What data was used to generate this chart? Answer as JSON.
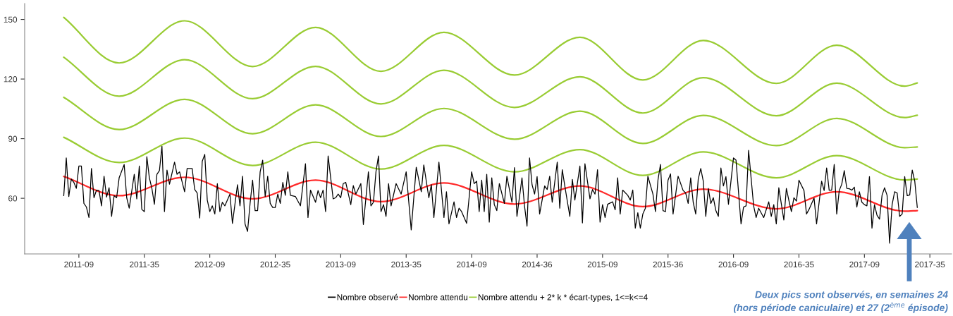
{
  "chart_data": {
    "type": "line",
    "categories": [
      null,
      null,
      null,
      null,
      null,
      null,
      "2011-09",
      null,
      null,
      null,
      null,
      null,
      null,
      null,
      null,
      null,
      null,
      null,
      null,
      null,
      null,
      null,
      null,
      null,
      null,
      null,
      null,
      null,
      null,
      null,
      null,
      null,
      "2011-35",
      null,
      null,
      null,
      null,
      null,
      null,
      null,
      null,
      null,
      null,
      null,
      null,
      null,
      null,
      null,
      null,
      null,
      null,
      null,
      null,
      null,
      null,
      null,
      null,
      null,
      "2012-09",
      null,
      null,
      null,
      null,
      null,
      null,
      null,
      null,
      null,
      null,
      null,
      null,
      null,
      null,
      null,
      null,
      null,
      null,
      null,
      null,
      null,
      null,
      null,
      null,
      null,
      "2012-35",
      null,
      null,
      null,
      null,
      null,
      null,
      null,
      null,
      null,
      null,
      null,
      null,
      null,
      null,
      null,
      null,
      null,
      null,
      null,
      null,
      null,
      null,
      null,
      null,
      null,
      "2013-09",
      null,
      null,
      null,
      null,
      null,
      null,
      null,
      null,
      null,
      null,
      null,
      null,
      null,
      null,
      null,
      null,
      null,
      null,
      null,
      null,
      null,
      null,
      null,
      null,
      null,
      "2013-35",
      null,
      null,
      null,
      null,
      null,
      null,
      null,
      null,
      null,
      null,
      null,
      null,
      null,
      null,
      null,
      null,
      null,
      null,
      null,
      null,
      null,
      null,
      null,
      null,
      null,
      "2014-09",
      null,
      null,
      null,
      null,
      null,
      null,
      null,
      null,
      null,
      null,
      null,
      null,
      null,
      null,
      null,
      null,
      null,
      null,
      null,
      null,
      null,
      null,
      null,
      null,
      null,
      "2014-36",
      null,
      null,
      null,
      null,
      null,
      null,
      null,
      null,
      null,
      null,
      null,
      null,
      null,
      null,
      null,
      null,
      null,
      null,
      null,
      null,
      null,
      null,
      null,
      null,
      null,
      "2015-09",
      null,
      null,
      null,
      null,
      null,
      null,
      null,
      null,
      null,
      null,
      null,
      null,
      null,
      null,
      null,
      null,
      null,
      null,
      null,
      null,
      null,
      null,
      null,
      null,
      null,
      "2015-36",
      null,
      null,
      null,
      null,
      null,
      null,
      null,
      null,
      null,
      null,
      null,
      null,
      null,
      null,
      null,
      null,
      null,
      null,
      null,
      null,
      null,
      null,
      null,
      null,
      null,
      "2016-09",
      null,
      null,
      null,
      null,
      null,
      null,
      null,
      null,
      null,
      null,
      null,
      null,
      null,
      null,
      null,
      null,
      null,
      null,
      null,
      null,
      null,
      null,
      null,
      null,
      null,
      "2016-35",
      null,
      null,
      null,
      null,
      null,
      null,
      null,
      null,
      null,
      null,
      null,
      null,
      null,
      null,
      null,
      null,
      null,
      null,
      null,
      null,
      null,
      null,
      null,
      null,
      null,
      "2017-09",
      null,
      null,
      null,
      null,
      null,
      null,
      null,
      null,
      null,
      null,
      null,
      null,
      null,
      null,
      null,
      null,
      null,
      null,
      null,
      null,
      null,
      null,
      null,
      null,
      null,
      "2017-35"
    ],
    "ylim": [
      32,
      158
    ],
    "yticks": [
      60,
      90,
      120,
      150
    ],
    "legend": "bottom",
    "series": [
      {
        "name": "Nombre observé",
        "color": "#000000",
        "values": [
          61.3,
          80.3,
          60.9,
          69.7,
          68.0,
          65.0,
          76.2,
          76.2,
          57.4,
          55.6,
          50.3,
          75.0,
          60.3,
          64.1,
          63.9,
          56.2,
          71.1,
          60.6,
          65.3,
          50.9,
          61.3,
          60.3,
          70.3,
          null,
          77.0,
          60.3,
          55.0,
          null,
          72.1,
          59.7,
          76.2,
          54.4,
          53.3,
          80.9,
          70.3,
          65.0,
          57.0,
          72.1,
          73.9,
          86.2,
          53.3,
          74.2,
          67.1,
          null,
          78.2,
          72.1,
          73.3,
          null,
          63.3,
          75.0,
          null,
          75.0,
          64.4,
          62.7,
          50.1,
          78.6,
          82.1,
          59.1,
          53.3,
          56.2,
          52.1,
          67.4,
          53.3,
          58.0,
          56.2,
          null,
          62.1,
          47.4,
          null,
          66.8,
          56.2,
          71.1,
          47.1,
          43.3,
          57.4,
          69.1,
          53.8,
          53.8,
          73.3,
          79.2,
          60.9,
          71.1,
          57.4,
          55.4,
          55.4,
          62.1,
          57.4,
          68.0,
          61.5,
          73.3,
          61.5,
          null,
          60.9,
          null,
          56.2,
          null,
          77.4,
          50.3,
          64.1,
          null,
          58.0,
          63.9,
          60.3,
          64.1,
          53.3,
          81.3,
          null,
          59.7,
          60.3,
          62.1,
          60.3,
          67.4,
          68.0,
          null,
          56.8,
          66.4,
          62.1,
          null,
          67.4,
          46.8,
          null,
          73.3,
          56.2,
          58.0,
          73.3,
          81.3,
          53.3,
          56.8,
          50.9,
          67.4,
          56.2,
          null,
          67.4,
          null,
          62.1,
          null,
          73.3,
          null,
          44.1,
          null,
          75.6,
          null,
          63.3,
          76.8,
          null,
          60.3,
          66.8,
          50.3,
          null,
          78.2,
          null,
          50.3,
          63.3,
          47.1,
          null,
          58.2,
          50.3,
          55.0,
          53.3,
          null,
          47.4,
          null,
          73.3,
          67.4,
          68.6,
          53.3,
          69.1,
          53.3,
          72.1,
          48.0,
          70.3,
          56.8,
          53.8,
          67.4,
          null,
          57.4,
          71.1,
          null,
          58.0,
          75.4,
          50.9,
          null,
          70.3,
          56.2,
          46.0,
          80.3,
          66.8,
          62.1,
          70.9,
          52.1,
          null,
          66.2,
          64.4,
          71.1,
          58.0,
          68.0,
          78.2,
          55.0,
          74.4,
          66.2,
          null,
          50.9,
          69.5,
          59.1,
          null,
          76.2,
          47.6,
          77.4,
          null,
          59.7,
          64.4,
          62.1,
          74.4,
          48.0,
          56.8,
          50.3,
          57.0,
          null,
          58.2,
          54.2,
          70.3,
          52.1,
          64.1,
          null,
          61.5,
          59.1,
          64.2,
          45.0,
          52.7,
          45.0,
          52.1,
          55.0,
          71.1,
          null,
          62.1,
          53.3,
          69.1,
          77.0,
          53.8,
          53.3,
          69.1,
          72.3,
          52.1,
          null,
          71.1,
          null,
          63.9,
          62.7,
          57.4,
          70.3,
          58.0,
          52.1,
          69.7,
          75.0,
          68.6,
          50.9,
          65.0,
          57.4,
          60.3,
          53.8,
          50.9,
          75.3,
          66.2,
          70.9,
          57.0,
          null,
          80.3,
          79.2,
          null,
          47.1,
          55.6,
          56.2,
          84.1,
          null,
          56.2,
          50.3,
          55.0,
          null,
          50.3,
          null,
          58.2,
          50.9,
          56.8,
          47.1,
          65.3,
          null,
          49.1,
          65.0,
          58.9,
          53.3,
          60.3,
          58.6,
          69.1,
          null,
          63.9,
          52.1,
          54.4,
          null,
          60.1,
          47.1,
          null,
          68.6,
          63.9,
          75.3,
          64.1,
          64.1,
          77.0,
          52.1,
          63.9,
          67.1,
          73.9,
          65.0,
          64.8,
          64.1,
          65.6,
          55.6,
          63.3,
          58.0,
          56.8,
          56.2,
          70.9,
          45.0,
          56.8,
          51.5,
          49.5,
          61.5,
          65.3,
          61.5,
          37.4,
          56.8,
          63.3,
          62.7,
          50.9,
          52.1,
          70.9,
          61.3,
          61.7,
          74.2,
          68.6,
          55.4,
          null,
          null,
          null,
          null,
          null
        ]
      },
      {
        "name": "Nombre attendu",
        "color": "#ff2a2a",
        "values": [
          71.0,
          null,
          null,
          null,
          null,
          null,
          null,
          null,
          null,
          null,
          null,
          null,
          null,
          null,
          null,
          null,
          null,
          null,
          null,
          null,
          null,
          null,
          61.3,
          null,
          null,
          null,
          null,
          null,
          null,
          null,
          null,
          null,
          null,
          null,
          null,
          null,
          null,
          null,
          null,
          null,
          null,
          null,
          null,
          null,
          null,
          null,
          null,
          null,
          70.6,
          null,
          null,
          null,
          null,
          null,
          null,
          null,
          null,
          null,
          null,
          null,
          null,
          null,
          null,
          null,
          null,
          null,
          null,
          null,
          null,
          null,
          null,
          null,
          null,
          null,
          null,
          59.7,
          null,
          null,
          null,
          null,
          null,
          null,
          null,
          null,
          null,
          null,
          null,
          null,
          null,
          null,
          null,
          null,
          null,
          null,
          null,
          null,
          null,
          null,
          null,
          null,
          69.1,
          null,
          null,
          null,
          null,
          null,
          null,
          null,
          null,
          null,
          null,
          null,
          null,
          null,
          null,
          null,
          null,
          null,
          null,
          null,
          null,
          null,
          null,
          null,
          null,
          null,
          58.3,
          null,
          null,
          null,
          null,
          null,
          null,
          null,
          null,
          null,
          null,
          null,
          null,
          null,
          null,
          null,
          null,
          null,
          null,
          null,
          null,
          null,
          null,
          null,
          null,
          67.7,
          null,
          null,
          null,
          null,
          null,
          null,
          null,
          null,
          null,
          null,
          null,
          null,
          null,
          null,
          null,
          null,
          null,
          null,
          null,
          null,
          null,
          null,
          null,
          null,
          null,
          null,
          null,
          57.1,
          null,
          null,
          null,
          null,
          null,
          null,
          null,
          null,
          null,
          null,
          null,
          null,
          null,
          null,
          null,
          null,
          null,
          null,
          null,
          null,
          null,
          null,
          null,
          null,
          null,
          66.2,
          null,
          null,
          null,
          null,
          null,
          null,
          null,
          null,
          null,
          null,
          null,
          null,
          null,
          null,
          null,
          null,
          null,
          null,
          null,
          null,
          null,
          null,
          null,
          null,
          55.8,
          null,
          null,
          null,
          null,
          null,
          null,
          null,
          null,
          null,
          null,
          null,
          null,
          null,
          null,
          null,
          null,
          null,
          null,
          null,
          null,
          null,
          null,
          null,
          64.6,
          null,
          null,
          null,
          null,
          null,
          null,
          null,
          null,
          null,
          null,
          null,
          null,
          null,
          null,
          null,
          null,
          null,
          null,
          null,
          null,
          null,
          null,
          null,
          null,
          null,
          null,
          null,
          null,
          54.7,
          null,
          null,
          null,
          null,
          null,
          null,
          null,
          null,
          null,
          null,
          null,
          null,
          null,
          null,
          null,
          null,
          null,
          null,
          null,
          null,
          null,
          null,
          null,
          63.3,
          null,
          null,
          null,
          null,
          null,
          null,
          null,
          null,
          null,
          null,
          null,
          null,
          null,
          null,
          null,
          null,
          null,
          null,
          null,
          null,
          null,
          null,
          null,
          null,
          null,
          null,
          53.5,
          null,
          null,
          null,
          null,
          53.8,
          null,
          null,
          null,
          null,
          null
        ]
      },
      {
        "name": "Nombre attendu + 2* k * écart-types, 1<=k<=4",
        "color": "#99cc33",
        "values": [
          90.7,
          null,
          null,
          null,
          null,
          null,
          null,
          null,
          null,
          null,
          null,
          null,
          null,
          null,
          null,
          null,
          null,
          null,
          null,
          null,
          null,
          null,
          78.0,
          null,
          null,
          null,
          null,
          null,
          null,
          null,
          null,
          null,
          null,
          null,
          null,
          null,
          null,
          null,
          null,
          null,
          null,
          null,
          null,
          null,
          null,
          null,
          null,
          null,
          90.3,
          null,
          null,
          null,
          null,
          null,
          null,
          null,
          null,
          null,
          null,
          null,
          null,
          null,
          null,
          null,
          null,
          null,
          null,
          null,
          null,
          null,
          null,
          null,
          null,
          null,
          null,
          76.5,
          null,
          null,
          null,
          null,
          null,
          null,
          null,
          null,
          null,
          null,
          null,
          null,
          null,
          null,
          null,
          null,
          null,
          null,
          null,
          null,
          null,
          null,
          null,
          null,
          88.2,
          null,
          null,
          null,
          null,
          null,
          null,
          null,
          null,
          null,
          null,
          null,
          null,
          null,
          null,
          null,
          null,
          null,
          null,
          null,
          null,
          null,
          null,
          null,
          null,
          null,
          74.7,
          null,
          null,
          null,
          null,
          null,
          null,
          null,
          null,
          null,
          null,
          null,
          null,
          null,
          null,
          null,
          null,
          null,
          null,
          null,
          null,
          null,
          null,
          null,
          null,
          86.6,
          null,
          null,
          null,
          null,
          null,
          null,
          null,
          null,
          null,
          null,
          null,
          null,
          null,
          null,
          null,
          null,
          null,
          null,
          null,
          null,
          null,
          null,
          null,
          null,
          null,
          null,
          null,
          73.3,
          null,
          null,
          null,
          null,
          null,
          null,
          null,
          null,
          null,
          null,
          null,
          null,
          null,
          null,
          null,
          null,
          null,
          null,
          null,
          null,
          null,
          null,
          null,
          null,
          null,
          84.5,
          null,
          null,
          null,
          null,
          null,
          null,
          null,
          null,
          null,
          null,
          null,
          null,
          null,
          null,
          null,
          null,
          null,
          null,
          null,
          null,
          null,
          null,
          null,
          null,
          71.5,
          null,
          null,
          null,
          null,
          null,
          null,
          null,
          null,
          null,
          null,
          null,
          null,
          null,
          null,
          null,
          null,
          null,
          null,
          null,
          null,
          null,
          null,
          null,
          83.3,
          null,
          null,
          null,
          null,
          null,
          null,
          null,
          null,
          null,
          null,
          null,
          null,
          null,
          null,
          null,
          null,
          null,
          null,
          null,
          null,
          null,
          null,
          null,
          null,
          null,
          null,
          null,
          null,
          70.3,
          null,
          null,
          null,
          null,
          null,
          null,
          null,
          null,
          null,
          null,
          null,
          null,
          null,
          null,
          null,
          null,
          null,
          null,
          null,
          null,
          null,
          null,
          null,
          81.5,
          null,
          null,
          null,
          null,
          null,
          null,
          null,
          null,
          null,
          null,
          null,
          null,
          null,
          null,
          null,
          null,
          null,
          null,
          null,
          null,
          null,
          null,
          null,
          null,
          null,
          null,
          69.2,
          null,
          null,
          null,
          null,
          69.7,
          null,
          null,
          null,
          null,
          null
        ]
      },
      {
        "color": "#99cc33",
        "values": [
          110.8,
          null,
          null,
          null,
          null,
          null,
          null,
          null,
          null,
          null,
          null,
          null,
          null,
          null,
          null,
          null,
          null,
          null,
          null,
          null,
          null,
          null,
          94.6,
          null,
          null,
          null,
          null,
          null,
          null,
          null,
          null,
          null,
          null,
          null,
          null,
          null,
          null,
          null,
          null,
          null,
          null,
          null,
          null,
          null,
          null,
          null,
          null,
          null,
          109.8,
          null,
          null,
          null,
          null,
          null,
          null,
          null,
          null,
          null,
          null,
          null,
          null,
          null,
          null,
          null,
          null,
          null,
          null,
          null,
          null,
          null,
          null,
          null,
          null,
          null,
          null,
          92.5,
          null,
          null,
          null,
          null,
          null,
          null,
          null,
          null,
          null,
          null,
          null,
          null,
          null,
          null,
          null,
          null,
          null,
          null,
          null,
          null,
          null,
          null,
          null,
          null,
          107.0,
          null,
          null,
          null,
          null,
          null,
          null,
          null,
          null,
          null,
          null,
          null,
          null,
          null,
          null,
          null,
          null,
          null,
          null,
          null,
          null,
          null,
          null,
          null,
          null,
          null,
          91.1,
          null,
          null,
          null,
          null,
          null,
          null,
          null,
          null,
          null,
          null,
          null,
          null,
          null,
          null,
          null,
          null,
          null,
          null,
          null,
          null,
          null,
          null,
          null,
          null,
          105.2,
          null,
          null,
          null,
          null,
          null,
          null,
          null,
          null,
          null,
          null,
          null,
          null,
          null,
          null,
          null,
          null,
          null,
          null,
          null,
          null,
          null,
          null,
          null,
          null,
          null,
          null,
          null,
          89.7,
          null,
          null,
          null,
          null,
          null,
          null,
          null,
          null,
          null,
          null,
          null,
          null,
          null,
          null,
          null,
          null,
          null,
          null,
          null,
          null,
          null,
          null,
          null,
          null,
          null,
          103.8,
          null,
          null,
          null,
          null,
          null,
          null,
          null,
          null,
          null,
          null,
          null,
          null,
          null,
          null,
          null,
          null,
          null,
          null,
          null,
          null,
          null,
          null,
          null,
          null,
          87.6,
          null,
          null,
          null,
          null,
          null,
          null,
          null,
          null,
          null,
          null,
          null,
          null,
          null,
          null,
          null,
          null,
          null,
          null,
          null,
          null,
          null,
          null,
          null,
          101.7,
          null,
          null,
          null,
          null,
          null,
          null,
          null,
          null,
          null,
          null,
          null,
          null,
          null,
          null,
          null,
          null,
          null,
          null,
          null,
          null,
          null,
          null,
          null,
          null,
          null,
          null,
          null,
          null,
          86.5,
          null,
          null,
          null,
          null,
          null,
          null,
          null,
          null,
          null,
          null,
          null,
          null,
          null,
          null,
          null,
          null,
          null,
          null,
          null,
          null,
          null,
          null,
          null,
          100.2,
          null,
          null,
          null,
          null,
          null,
          null,
          null,
          null,
          null,
          null,
          null,
          null,
          null,
          null,
          null,
          null,
          null,
          null,
          null,
          null,
          null,
          null,
          null,
          null,
          null,
          null,
          85.5,
          null,
          null,
          null,
          null,
          85.8,
          null,
          null,
          null,
          null,
          null
        ]
      },
      {
        "color": "#99cc33",
        "values": [
          131.0,
          null,
          null,
          null,
          null,
          null,
          null,
          null,
          null,
          null,
          null,
          null,
          null,
          null,
          null,
          null,
          null,
          null,
          null,
          null,
          null,
          null,
          111.4,
          null,
          null,
          null,
          null,
          null,
          null,
          null,
          null,
          null,
          null,
          null,
          null,
          null,
          null,
          null,
          null,
          null,
          null,
          null,
          null,
          null,
          null,
          null,
          null,
          null,
          129.7,
          null,
          null,
          null,
          null,
          null,
          null,
          null,
          null,
          null,
          null,
          null,
          null,
          null,
          null,
          null,
          null,
          null,
          null,
          null,
          null,
          null,
          null,
          null,
          null,
          null,
          null,
          110.1,
          null,
          null,
          null,
          null,
          null,
          null,
          null,
          null,
          null,
          null,
          null,
          null,
          null,
          null,
          null,
          null,
          null,
          null,
          null,
          null,
          null,
          null,
          null,
          null,
          126.4,
          null,
          null,
          null,
          null,
          null,
          null,
          null,
          null,
          null,
          null,
          null,
          null,
          null,
          null,
          null,
          null,
          null,
          null,
          null,
          null,
          null,
          null,
          null,
          null,
          null,
          107.5,
          null,
          null,
          null,
          null,
          null,
          null,
          null,
          null,
          null,
          null,
          null,
          null,
          null,
          null,
          null,
          null,
          null,
          null,
          null,
          null,
          null,
          null,
          null,
          null,
          124.4,
          null,
          null,
          null,
          null,
          null,
          null,
          null,
          null,
          null,
          null,
          null,
          null,
          null,
          null,
          null,
          null,
          null,
          null,
          null,
          null,
          null,
          null,
          null,
          null,
          null,
          null,
          null,
          105.7,
          null,
          null,
          null,
          null,
          null,
          null,
          null,
          null,
          null,
          null,
          null,
          null,
          null,
          null,
          null,
          null,
          null,
          null,
          null,
          null,
          null,
          null,
          null,
          null,
          null,
          121.1,
          null,
          null,
          null,
          null,
          null,
          null,
          null,
          null,
          null,
          null,
          null,
          null,
          null,
          null,
          null,
          null,
          null,
          null,
          null,
          null,
          null,
          null,
          null,
          null,
          102.9,
          null,
          null,
          null,
          null,
          null,
          null,
          null,
          null,
          null,
          null,
          null,
          null,
          null,
          null,
          null,
          null,
          null,
          null,
          null,
          null,
          null,
          null,
          null,
          120.7,
          null,
          null,
          null,
          null,
          null,
          null,
          null,
          null,
          null,
          null,
          null,
          null,
          null,
          null,
          null,
          null,
          null,
          null,
          null,
          null,
          null,
          null,
          null,
          null,
          null,
          null,
          null,
          null,
          101.5,
          null,
          null,
          null,
          null,
          null,
          null,
          null,
          null,
          null,
          null,
          null,
          null,
          null,
          null,
          null,
          null,
          null,
          null,
          null,
          null,
          null,
          null,
          null,
          117.9,
          null,
          null,
          null,
          null,
          null,
          null,
          null,
          null,
          null,
          null,
          null,
          null,
          null,
          null,
          null,
          null,
          null,
          null,
          null,
          null,
          null,
          null,
          null,
          null,
          null,
          null,
          100.6,
          null,
          null,
          null,
          null,
          101.8,
          null,
          null,
          null,
          null,
          null
        ]
      },
      {
        "color": "#99cc33",
        "values": [
          151.0,
          null,
          null,
          null,
          null,
          null,
          null,
          null,
          null,
          null,
          null,
          null,
          null,
          null,
          null,
          null,
          null,
          null,
          null,
          null,
          null,
          null,
          128.1,
          null,
          null,
          null,
          null,
          null,
          null,
          null,
          null,
          null,
          null,
          null,
          null,
          null,
          null,
          null,
          null,
          null,
          null,
          null,
          null,
          null,
          null,
          null,
          null,
          null,
          149.3,
          null,
          null,
          null,
          null,
          null,
          null,
          null,
          null,
          null,
          null,
          null,
          null,
          null,
          null,
          null,
          null,
          null,
          null,
          null,
          null,
          null,
          null,
          null,
          null,
          null,
          null,
          126.3,
          null,
          null,
          null,
          null,
          null,
          null,
          null,
          null,
          null,
          null,
          null,
          null,
          null,
          null,
          null,
          null,
          null,
          null,
          null,
          null,
          null,
          null,
          null,
          null,
          146.0,
          null,
          null,
          null,
          null,
          null,
          null,
          null,
          null,
          null,
          null,
          null,
          null,
          null,
          null,
          null,
          null,
          null,
          null,
          null,
          null,
          null,
          null,
          null,
          null,
          null,
          123.9,
          null,
          null,
          null,
          null,
          null,
          null,
          null,
          null,
          null,
          null,
          null,
          null,
          null,
          null,
          null,
          null,
          null,
          null,
          null,
          null,
          null,
          null,
          null,
          null,
          143.5,
          null,
          null,
          null,
          null,
          null,
          null,
          null,
          null,
          null,
          null,
          null,
          null,
          null,
          null,
          null,
          null,
          null,
          null,
          null,
          null,
          null,
          null,
          null,
          null,
          null,
          null,
          null,
          122.0,
          null,
          null,
          null,
          null,
          null,
          null,
          null,
          null,
          null,
          null,
          null,
          null,
          null,
          null,
          null,
          null,
          null,
          null,
          null,
          null,
          null,
          null,
          null,
          null,
          null,
          141.0,
          null,
          null,
          null,
          null,
          null,
          null,
          null,
          null,
          null,
          null,
          null,
          null,
          null,
          null,
          null,
          null,
          null,
          null,
          null,
          null,
          null,
          null,
          null,
          null,
          119.5,
          null,
          null,
          null,
          null,
          null,
          null,
          null,
          null,
          null,
          null,
          null,
          null,
          null,
          null,
          null,
          null,
          null,
          null,
          null,
          null,
          null,
          null,
          null,
          139.4,
          null,
          null,
          null,
          null,
          null,
          null,
          null,
          null,
          null,
          null,
          null,
          null,
          null,
          null,
          null,
          null,
          null,
          null,
          null,
          null,
          null,
          null,
          null,
          null,
          null,
          null,
          null,
          null,
          117.8,
          null,
          null,
          null,
          null,
          null,
          null,
          null,
          null,
          null,
          null,
          null,
          null,
          null,
          null,
          null,
          null,
          null,
          null,
          null,
          null,
          null,
          null,
          null,
          137.0,
          null,
          null,
          null,
          null,
          null,
          null,
          null,
          null,
          null,
          null,
          null,
          null,
          null,
          null,
          null,
          null,
          null,
          null,
          null,
          null,
          null,
          null,
          null,
          null,
          null,
          null,
          116.4,
          null,
          null,
          null,
          null,
          118.0,
          null,
          null,
          null,
          null,
          null
        ]
      }
    ],
    "annotations": [
      "Deux pics sont observés, en semaines 24\n(hors période caniculaire) et 27 (2$^{ème}$ épisode)"
    ]
  }
}
